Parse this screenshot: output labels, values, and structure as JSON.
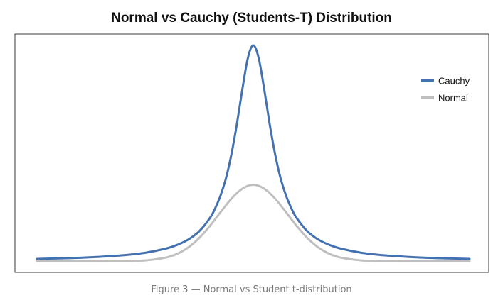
{
  "chart_data": {
    "type": "line",
    "title": "Normal vs Cauchy (Students-T) Distribution",
    "xlabel": "",
    "ylabel": "",
    "grid": false,
    "axis_ticks": false,
    "legend_placement": "top-right",
    "series": [
      {
        "name": "Cauchy",
        "color": "#4472b0",
        "x": [
          -10,
          -9,
          -8,
          -7,
          -6,
          -5,
          -4,
          -3.5,
          -3,
          -2.5,
          -2,
          -1.75,
          -1.5,
          -1.25,
          -1,
          -0.75,
          -0.5,
          -0.25,
          0,
          0.25,
          0.5,
          0.75,
          1,
          1.25,
          1.5,
          1.75,
          2,
          2.5,
          3,
          3.5,
          4,
          5,
          6,
          7,
          8,
          9,
          10
        ],
        "y": [
          0.0032,
          0.0039,
          0.0049,
          0.0064,
          0.0086,
          0.0122,
          0.0187,
          0.0241,
          0.0318,
          0.0439,
          0.0637,
          0.0786,
          0.0979,
          0.1237,
          0.1592,
          0.2037,
          0.2546,
          0.2996,
          0.3183,
          0.2996,
          0.2546,
          0.2037,
          0.1592,
          0.1237,
          0.0979,
          0.0786,
          0.0637,
          0.0439,
          0.0318,
          0.0241,
          0.0187,
          0.0122,
          0.0086,
          0.0064,
          0.0049,
          0.0039,
          0.0032
        ]
      },
      {
        "name": "Normal",
        "color": "#bfbfbf",
        "x": [
          -10,
          -8,
          -6,
          -5,
          -4,
          -3.5,
          -3,
          -2.5,
          -2,
          -1.5,
          -1,
          -0.5,
          0,
          0.5,
          1,
          1.5,
          2,
          2.5,
          3,
          3.5,
          4,
          5,
          6,
          8,
          10
        ],
        "y": [
          0.0,
          0.0,
          0.0001,
          0.0009,
          0.0054,
          0.0109,
          0.0202,
          0.034,
          0.052,
          0.0727,
          0.0924,
          0.1069,
          0.1125,
          0.1069,
          0.0924,
          0.0727,
          0.052,
          0.034,
          0.0202,
          0.0109,
          0.0054,
          0.0009,
          0.0001,
          0.0,
          0.0
        ]
      }
    ],
    "xlim": [
      -10,
      10
    ],
    "ylim": [
      0,
      0.335
    ]
  },
  "caption": "Figure 3 — Normal vs Student t-distribution"
}
